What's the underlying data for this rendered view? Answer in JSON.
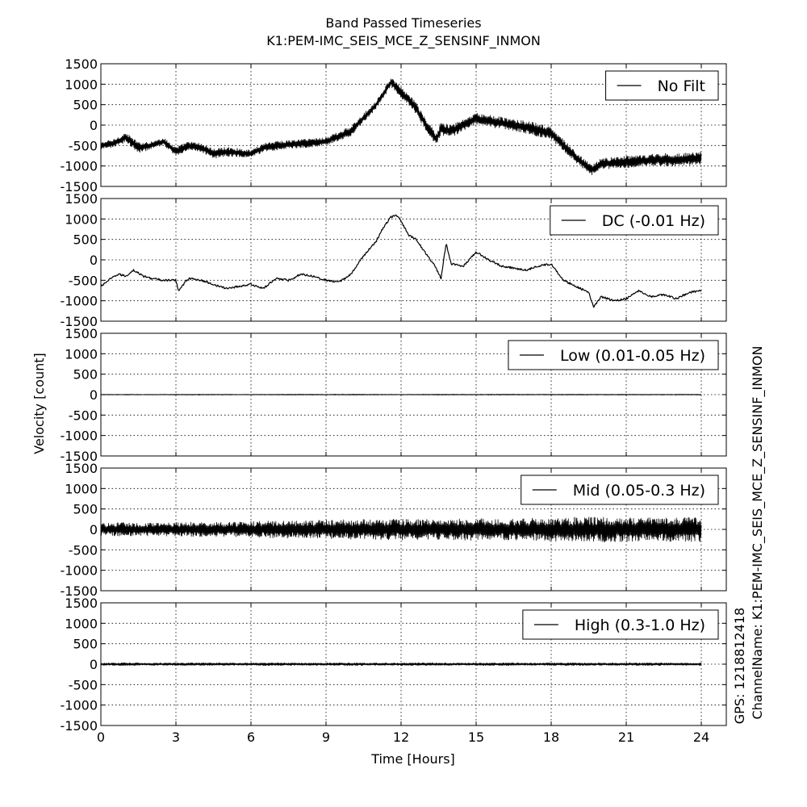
{
  "figure": {
    "title_line1": "Band Passed Timeseries",
    "title_line2": "K1:PEM-IMC_SEIS_MCE_Z_SENSINF_INMON",
    "xlabel": "Time [Hours]",
    "ylabel": "Velocity [count]",
    "side_gps": "GPS: 1218812418",
    "side_channel": "ChannelName: K1:PEM-IMC_SEIS_MCE_Z_SENSINF_INMON"
  },
  "colors": {
    "line": "#000000",
    "grid": "#000000",
    "background": "#ffffff"
  },
  "chart_data": {
    "type": "line",
    "xlabel": "Time [Hours]",
    "ylabel": "Velocity [count]",
    "xlim": [
      0,
      25
    ],
    "ylim": [
      -1500,
      1500
    ],
    "xticks": [
      0,
      3,
      6,
      9,
      12,
      15,
      18,
      21,
      24
    ],
    "yticks": [
      1500,
      1000,
      500,
      0,
      -500,
      -1000,
      -1500
    ],
    "grid": true,
    "legend_position": "top-right",
    "series": [
      {
        "name": "No Filt",
        "envelope_halfwidth": [
          80,
          110,
          130,
          90,
          110,
          100,
          120,
          110,
          90,
          120,
          100,
          110,
          100,
          120,
          110,
          100,
          130,
          140,
          160,
          150,
          140,
          150,
          140,
          160,
          150,
          140,
          130,
          140,
          150,
          130,
          160,
          150,
          160
        ],
        "x": [
          0,
          0.5,
          1,
          1.5,
          2,
          2.5,
          3,
          3.5,
          4,
          4.5,
          5,
          6,
          6.5,
          7,
          8,
          9,
          10,
          11,
          11.6,
          12,
          12.5,
          13,
          13.4,
          13.6,
          14,
          15,
          16,
          17,
          18,
          19,
          19.6,
          20,
          21,
          22,
          23,
          24
        ],
        "y": [
          -500,
          -450,
          -300,
          -550,
          -500,
          -400,
          -650,
          -500,
          -550,
          -700,
          -650,
          -700,
          -550,
          -500,
          -450,
          -400,
          -150,
          500,
          1050,
          800,
          500,
          0,
          -350,
          -100,
          -150,
          150,
          50,
          -50,
          -200,
          -800,
          -1100,
          -950,
          -900,
          -850,
          -850,
          -800
        ]
      },
      {
        "name": "DC (-0.01 Hz)",
        "x": [
          0,
          0.3,
          0.7,
          1,
          1.3,
          1.7,
          2,
          2.5,
          3,
          3.1,
          3.5,
          4,
          4.5,
          5,
          5.5,
          6,
          6.5,
          7,
          7.5,
          8,
          8.5,
          9,
          9.5,
          10,
          10.5,
          11,
          11.3,
          11.6,
          11.8,
          12,
          12.3,
          12.6,
          13,
          13.3,
          13.6,
          13.8,
          14,
          14.5,
          15,
          15.5,
          16,
          16.5,
          17,
          17.5,
          18,
          18.5,
          19,
          19.5,
          19.7,
          20,
          20.5,
          21,
          21.5,
          22,
          22.5,
          23,
          23.5,
          24
        ],
        "y": [
          -650,
          -500,
          -350,
          -400,
          -250,
          -400,
          -450,
          -500,
          -500,
          -750,
          -450,
          -500,
          -600,
          -700,
          -650,
          -600,
          -700,
          -450,
          -500,
          -350,
          -400,
          -500,
          -550,
          -350,
          100,
          450,
          800,
          1050,
          1100,
          950,
          600,
          500,
          150,
          -100,
          -450,
          400,
          -100,
          -150,
          200,
          0,
          -150,
          -200,
          -250,
          -150,
          -100,
          -500,
          -650,
          -800,
          -1150,
          -900,
          -1000,
          -950,
          -750,
          -900,
          -850,
          -950,
          -800,
          -750
        ]
      },
      {
        "name": "Low (0.01-0.05 Hz)",
        "envelope_halfwidth": [
          8,
          10,
          8,
          10,
          12,
          10,
          8,
          10,
          12,
          10,
          12,
          10,
          8,
          10,
          12,
          10,
          12,
          10,
          10,
          12,
          10,
          12,
          10,
          10,
          12
        ],
        "x": [
          0,
          24
        ],
        "y": [
          0,
          0
        ]
      },
      {
        "name": "Mid (0.05-0.3 Hz)",
        "envelope_halfwidth": [
          150,
          170,
          160,
          170,
          180,
          170,
          200,
          210,
          220,
          230,
          240,
          250,
          260,
          250,
          260,
          270,
          260,
          270,
          290,
          300,
          310,
          300,
          290,
          300,
          310
        ],
        "x": [
          0,
          24
        ],
        "y": [
          0,
          0
        ]
      },
      {
        "name": "High (0.3-1.0 Hz)",
        "envelope_halfwidth": [
          30,
          35,
          30,
          32,
          35,
          30,
          32,
          35,
          30,
          32,
          35,
          30,
          32,
          35,
          30,
          32,
          35,
          30,
          32,
          35,
          30,
          32,
          35,
          30,
          32
        ],
        "x": [
          0,
          24
        ],
        "y": [
          0,
          0
        ]
      }
    ]
  }
}
